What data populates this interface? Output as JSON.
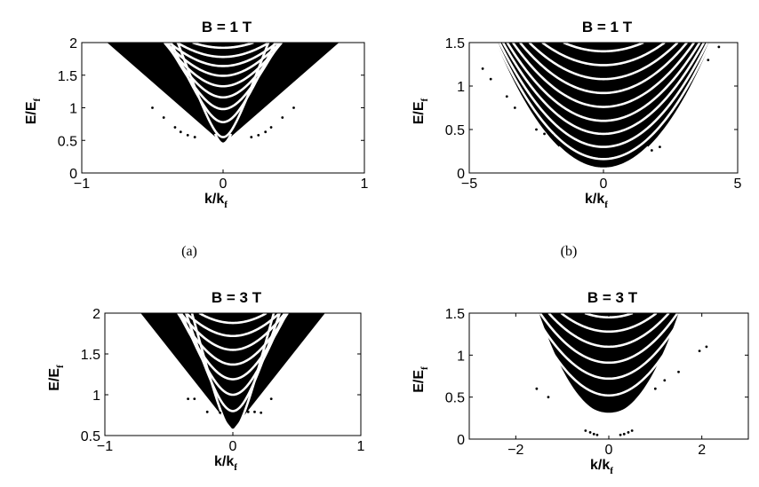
{
  "chart_data": [
    {
      "id": "a",
      "type": "scatter",
      "title": "B = 1 T",
      "caption": "(a)",
      "xlabel": "k/k",
      "xlabel_sub": "f",
      "ylabel": "E/E",
      "ylabel_sub": "f",
      "xlim": [
        -1,
        1
      ],
      "ylim": [
        0,
        2
      ],
      "xticks": [
        -1,
        0,
        1
      ],
      "xtick_labels": [
        "−1",
        "0",
        "1"
      ],
      "yticks": [
        0,
        0.5,
        1,
        1.5,
        2
      ],
      "ytick_labels": [
        "0",
        "0.5",
        "1",
        "1.5",
        "2"
      ],
      "band_vertex_slope": 1.0,
      "band_branches": [
        {
          "k0": 0.0,
          "e0": 0.45,
          "a": 7.0,
          "e_end": 0.6
        },
        {
          "k0": 0.0,
          "e0": 0.55,
          "a": 6.0,
          "e_end": 2.0
        },
        {
          "k0": 0.0,
          "e0": 0.78,
          "a": 5.0,
          "e_end": 2.0
        },
        {
          "k0": 0.0,
          "e0": 0.98,
          "a": 4.4,
          "e_end": 2.0
        },
        {
          "k0": 0.0,
          "e0": 1.16,
          "a": 4.0,
          "e_end": 2.0
        },
        {
          "k0": 0.0,
          "e0": 1.33,
          "a": 3.6,
          "e_end": 2.0
        },
        {
          "k0": 0.0,
          "e0": 1.49,
          "a": 3.3,
          "e_end": 2.0
        },
        {
          "k0": 0.0,
          "e0": 1.64,
          "a": 3.0,
          "e_end": 2.0
        },
        {
          "k0": 0.0,
          "e0": 1.78,
          "a": 2.8,
          "e_end": 2.0
        },
        {
          "k0": 0.0,
          "e0": 1.92,
          "a": 2.6,
          "e_end": 2.0
        }
      ],
      "band_fill": {
        "k_top": 0.82,
        "e_top": 2.0,
        "e_bottom": 0.45
      },
      "scatter_points": [
        [
          -0.34,
          0.7
        ],
        [
          -0.3,
          0.63
        ],
        [
          0.3,
          0.63
        ],
        [
          0.34,
          0.7
        ],
        [
          -0.42,
          0.85
        ],
        [
          0.42,
          0.85
        ],
        [
          -0.5,
          1.0
        ],
        [
          0.5,
          1.0
        ],
        [
          -0.2,
          0.55
        ],
        [
          0.2,
          0.55
        ],
        [
          -0.25,
          0.58
        ],
        [
          0.25,
          0.58
        ]
      ]
    },
    {
      "id": "b",
      "type": "scatter",
      "title": "B = 1 T",
      "caption": "(b)",
      "xlabel": "k/k",
      "xlabel_sub": "f",
      "ylabel": "E/E",
      "ylabel_sub": "f",
      "xlim": [
        -5,
        5
      ],
      "ylim": [
        0,
        1.5
      ],
      "xticks": [
        -5,
        0,
        5
      ],
      "xtick_labels": [
        "−5",
        "0",
        "5"
      ],
      "yticks": [
        0,
        0.5,
        1,
        1.5
      ],
      "ytick_labels": [
        "0",
        "0.5",
        "1",
        "1.5"
      ],
      "band_vertex_slope": 0.0,
      "band_branches": [
        {
          "k0": 0.0,
          "e0": 0.05,
          "a": 0.09,
          "e_end": 0.3
        },
        {
          "k0": 0.0,
          "e0": 0.16,
          "a": 0.085,
          "e_end": 1.5
        },
        {
          "k0": 0.0,
          "e0": 0.3,
          "a": 0.08,
          "e_end": 1.5
        },
        {
          "k0": 0.0,
          "e0": 0.45,
          "a": 0.075,
          "e_end": 1.5
        },
        {
          "k0": 0.0,
          "e0": 0.6,
          "a": 0.07,
          "e_end": 1.5
        },
        {
          "k0": 0.0,
          "e0": 0.76,
          "a": 0.065,
          "e_end": 1.5
        },
        {
          "k0": 0.0,
          "e0": 0.92,
          "a": 0.06,
          "e_end": 1.5
        },
        {
          "k0": 0.0,
          "e0": 1.08,
          "a": 0.055,
          "e_end": 1.5
        },
        {
          "k0": 0.0,
          "e0": 1.24,
          "a": 0.05,
          "e_end": 1.5
        },
        {
          "k0": 0.0,
          "e0": 1.4,
          "a": 0.045,
          "e_end": 1.5
        }
      ],
      "band_fill": {
        "k_top": 4.0,
        "e_top": 1.5,
        "e_bottom": 0.05
      },
      "scatter_points": [
        [
          -4.5,
          1.2
        ],
        [
          -4.2,
          1.08
        ],
        [
          -3.6,
          0.88
        ],
        [
          -3.3,
          0.75
        ],
        [
          -2.5,
          0.5
        ],
        [
          -2.2,
          0.45
        ],
        [
          -1.9,
          0.43
        ],
        [
          4.3,
          1.45
        ],
        [
          3.9,
          1.3
        ],
        [
          2.1,
          0.3
        ],
        [
          1.8,
          0.26
        ]
      ]
    },
    {
      "id": "c",
      "type": "scatter",
      "title": "B = 3 T",
      "caption": "",
      "xlabel": "k/k",
      "xlabel_sub": "f",
      "ylabel": "E/E",
      "ylabel_sub": "f",
      "xlim": [
        -1,
        1
      ],
      "ylim": [
        0.5,
        2
      ],
      "xticks": [
        -1,
        0,
        1
      ],
      "xtick_labels": [
        "−1",
        "0",
        "1"
      ],
      "yticks": [
        0.5,
        1,
        1.5,
        2
      ],
      "ytick_labels": [
        "0.5",
        "1",
        "1.5",
        "2"
      ],
      "band_vertex_slope": 1.0,
      "band_branches": [
        {
          "k0": 0.0,
          "e0": 0.57,
          "a": 6.0,
          "e_end": 2.0
        },
        {
          "k0": 0.0,
          "e0": 0.8,
          "a": 5.0,
          "e_end": 2.0
        },
        {
          "k0": 0.0,
          "e0": 1.0,
          "a": 4.3,
          "e_end": 2.0
        },
        {
          "k0": 0.0,
          "e0": 1.19,
          "a": 3.8,
          "e_end": 2.0
        },
        {
          "k0": 0.0,
          "e0": 1.37,
          "a": 3.4,
          "e_end": 2.0
        },
        {
          "k0": 0.0,
          "e0": 1.55,
          "a": 3.1,
          "e_end": 2.0
        },
        {
          "k0": 0.0,
          "e0": 1.72,
          "a": 2.8,
          "e_end": 2.0
        },
        {
          "k0": 0.0,
          "e0": 1.88,
          "a": 2.6,
          "e_end": 2.0
        }
      ],
      "band_fill": {
        "k_top": 0.72,
        "e_top": 2.0,
        "e_bottom": 0.57
      },
      "scatter_points": [
        [
          -0.35,
          0.95
        ],
        [
          -0.3,
          0.95
        ],
        [
          -0.1,
          0.78
        ],
        [
          -0.06,
          0.78
        ],
        [
          0.12,
          0.79
        ],
        [
          0.17,
          0.79
        ],
        [
          0.22,
          0.78
        ],
        [
          -0.2,
          0.79
        ],
        [
          0.3,
          0.95
        ]
      ]
    },
    {
      "id": "d",
      "type": "scatter",
      "title": "B = 3 T",
      "caption": "",
      "xlabel": "k/k",
      "xlabel_sub": "f",
      "ylabel": "E/E",
      "ylabel_sub": "f",
      "xlim": [
        -3,
        3
      ],
      "ylim": [
        0,
        1.5
      ],
      "xticks": [
        -2,
        0,
        2
      ],
      "xtick_labels": [
        "−2",
        "0",
        "2"
      ],
      "yticks": [
        0,
        0.5,
        1,
        1.5
      ],
      "ytick_labels": [
        "0",
        "0.5",
        "1",
        "1.5"
      ],
      "band_vertex_slope": 0.0,
      "band_branches": [
        {
          "k0": 0.0,
          "e0": 0.3,
          "a": 0.4,
          "e_end": 1.5
        },
        {
          "k0": 0.0,
          "e0": 0.52,
          "a": 0.35,
          "e_end": 1.5
        },
        {
          "k0": 0.0,
          "e0": 0.72,
          "a": 0.3,
          "e_end": 1.5
        },
        {
          "k0": 0.0,
          "e0": 0.91,
          "a": 0.27,
          "e_end": 1.5
        },
        {
          "k0": 0.0,
          "e0": 1.1,
          "a": 0.24,
          "e_end": 1.5
        },
        {
          "k0": 0.0,
          "e0": 1.28,
          "a": 0.21,
          "e_end": 1.5
        },
        {
          "k0": 0.0,
          "e0": 1.45,
          "a": 0.19,
          "e_end": 1.5
        }
      ],
      "band_fill": {
        "k_top": 1.5,
        "e_top": 1.5,
        "e_bottom": 0.3
      },
      "scatter_points": [
        [
          -0.5,
          0.1
        ],
        [
          -0.4,
          0.08
        ],
        [
          -0.32,
          0.06
        ],
        [
          -0.25,
          0.05
        ],
        [
          0.25,
          0.05
        ],
        [
          0.33,
          0.06
        ],
        [
          0.42,
          0.08
        ],
        [
          0.5,
          0.1
        ],
        [
          -1.55,
          0.6
        ],
        [
          -1.3,
          0.5
        ],
        [
          1.0,
          0.6
        ],
        [
          1.2,
          0.7
        ],
        [
          1.5,
          0.8
        ],
        [
          1.95,
          1.05
        ],
        [
          2.1,
          1.1
        ]
      ]
    }
  ]
}
